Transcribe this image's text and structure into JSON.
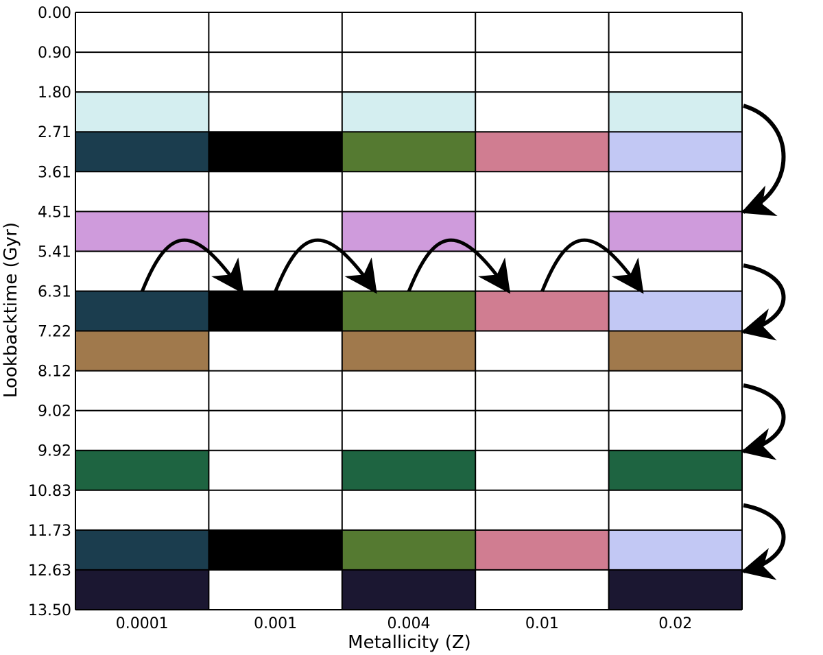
{
  "chart_data": {
    "type": "heatmap",
    "xlabel": "Metallicity (Z)",
    "ylabel": "Lookbacktime (Gyr)",
    "x_categories": [
      "0.0001",
      "0.001",
      "0.004",
      "0.01",
      "0.02"
    ],
    "y_ticks": [
      "0.00",
      "0.90",
      "1.80",
      "2.71",
      "3.61",
      "4.51",
      "5.41",
      "6.31",
      "7.22",
      "8.12",
      "9.02",
      "9.92",
      "10.83",
      "11.73",
      "12.63",
      "13.50"
    ],
    "colors": {
      "C": "#d4eef0",
      "D": "#1b3d4e",
      "K": "#000000",
      "G": "#557a31",
      "R": "#d07d91",
      "P": "#c2c8f4",
      "V": "#cf9bdc",
      "B": "#a0794c",
      "F": "#1e6441",
      "N": "#1b1731"
    },
    "cells": [
      [
        "",
        "",
        "",
        "",
        ""
      ],
      [
        "",
        "",
        "",
        "",
        ""
      ],
      [
        "C",
        "",
        "C",
        "",
        "C"
      ],
      [
        "D",
        "K",
        "G",
        "R",
        "P"
      ],
      [
        "",
        "",
        "",
        "",
        ""
      ],
      [
        "V",
        "",
        "V",
        "",
        "V"
      ],
      [
        "",
        "",
        "",
        "",
        ""
      ],
      [
        "D",
        "K",
        "G",
        "R",
        "P"
      ],
      [
        "B",
        "",
        "B",
        "",
        "B"
      ],
      [
        "",
        "",
        "",
        "",
        ""
      ],
      [
        "",
        "",
        "",
        "",
        ""
      ],
      [
        "F",
        "",
        "F",
        "",
        "F"
      ],
      [
        "",
        "",
        "",
        "",
        ""
      ],
      [
        "D",
        "K",
        "G",
        "R",
        "P"
      ],
      [
        "N",
        "",
        "N",
        "",
        "N"
      ]
    ],
    "grid": true,
    "annotations": [
      {
        "type": "arrow",
        "direction": "horizontal",
        "from_column": 0,
        "to_column": 1
      },
      {
        "type": "arrow",
        "direction": "horizontal",
        "from_column": 1,
        "to_column": 2
      },
      {
        "type": "arrow",
        "direction": "horizontal",
        "from_column": 2,
        "to_column": 3
      },
      {
        "type": "arrow",
        "direction": "horizontal",
        "from_column": 3,
        "to_column": 4
      },
      {
        "type": "arrow",
        "direction": "vertical",
        "from_y": 1.8,
        "to_y": 4.51
      },
      {
        "type": "arrow",
        "direction": "vertical",
        "from_y": 5.41,
        "to_y": 7.22
      },
      {
        "type": "arrow",
        "direction": "vertical",
        "from_y": 8.12,
        "to_y": 9.92
      },
      {
        "type": "arrow",
        "direction": "vertical",
        "from_y": 10.83,
        "to_y": 12.63
      }
    ]
  }
}
